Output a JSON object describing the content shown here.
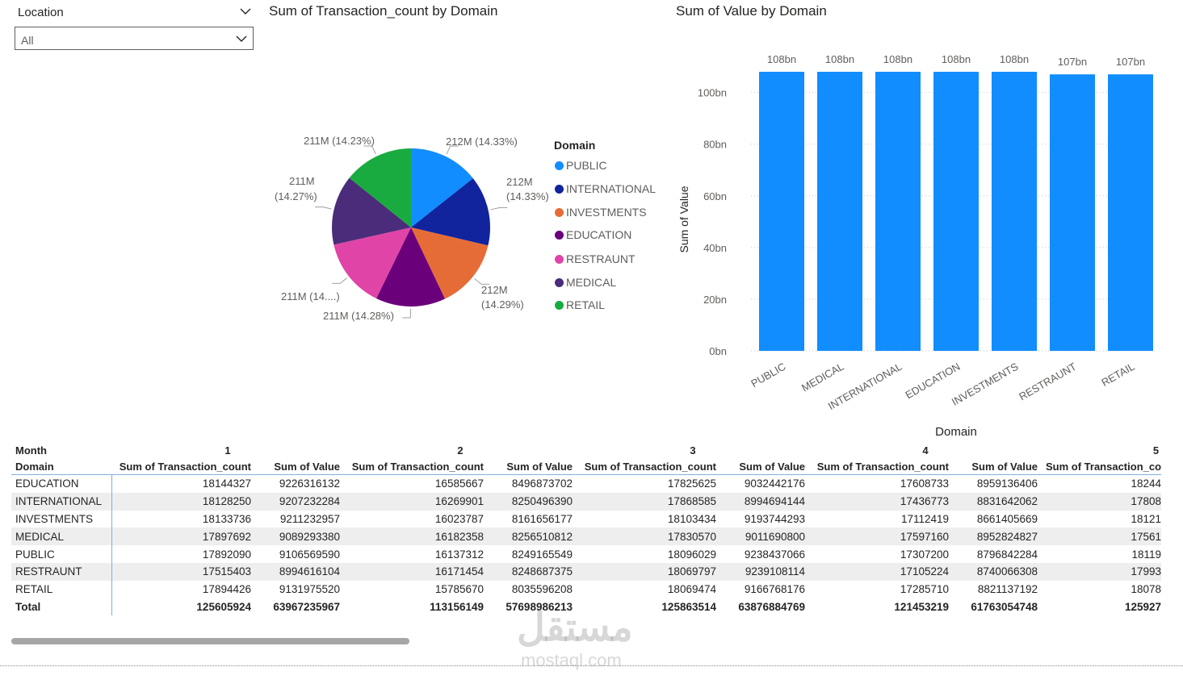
{
  "slicer": {
    "title": "Location",
    "value": "All"
  },
  "pie": {
    "title": "Sum of Transaction_count by Domain",
    "legend_title": "Domain",
    "labels": {
      "public": "212M (14.33%)",
      "international_1": "212M",
      "international_2": "(14.33%)",
      "investments_1": "212M",
      "investments_2": "(14.29%)",
      "education": "211M (14.28%)",
      "restraunt": "211M (14....)",
      "medical_1": "211M",
      "medical_2": "(14.27%)",
      "retail": "211M (14.23%)"
    },
    "legend": [
      "PUBLIC",
      "INTERNATIONAL",
      "INVESTMENTS",
      "EDUCATION",
      "RESTRAUNT",
      "MEDICAL",
      "RETAIL"
    ]
  },
  "chart_data": [
    {
      "type": "pie",
      "title": "Sum of Transaction_count by Domain",
      "legend_title": "Domain",
      "legend_position": "right",
      "categories": [
        "PUBLIC",
        "INTERNATIONAL",
        "INVESTMENTS",
        "EDUCATION",
        "RESTRAUNT",
        "MEDICAL",
        "RETAIL"
      ],
      "values": [
        212,
        212,
        212,
        211,
        211,
        211,
        211
      ],
      "percents": [
        14.33,
        14.33,
        14.29,
        14.28,
        14.27,
        14.27,
        14.23
      ],
      "unit": "M",
      "colors": [
        "#118dff",
        "#12239e",
        "#e66c37",
        "#6b007b",
        "#e044a7",
        "#4a2c7a",
        "#1aab40"
      ]
    },
    {
      "type": "bar",
      "title": "Sum of Value by Domain",
      "xlabel": "Domain",
      "ylabel": "Sum of Value",
      "categories": [
        "PUBLIC",
        "MEDICAL",
        "INTERNATIONAL",
        "EDUCATION",
        "INVESTMENTS",
        "RESTRAUNT",
        "RETAIL"
      ],
      "values": [
        108,
        108,
        108,
        108,
        108,
        107,
        107
      ],
      "data_labels": [
        "108bn",
        "108bn",
        "108bn",
        "108bn",
        "108bn",
        "107bn",
        "107bn"
      ],
      "ylim": [
        0,
        108
      ],
      "yticks": [
        0,
        20,
        40,
        60,
        80,
        100
      ],
      "ytick_labels": [
        "0bn",
        "20bn",
        "40bn",
        "60bn",
        "80bn",
        "100bn"
      ],
      "unit": "bn",
      "grid": true,
      "color": "#118dff"
    }
  ],
  "matrix": {
    "row_header_1": "Month",
    "row_header_2": "Domain",
    "months": [
      "1",
      "2",
      "3",
      "4",
      "5"
    ],
    "col_tc": "Sum of Transaction_count",
    "col_tc_cut": "Sum of Transaction_co",
    "col_val": "Sum of Value",
    "rows": [
      {
        "domain": "EDUCATION",
        "cells": [
          "18144327",
          "9226316132",
          "16585667",
          "8496873702",
          "17825625",
          "9032442176",
          "17608733",
          "8959136406",
          "18244"
        ]
      },
      {
        "domain": "INTERNATIONAL",
        "cells": [
          "18128250",
          "9207232284",
          "16269901",
          "8250496390",
          "17868585",
          "8994694144",
          "17436773",
          "8831642062",
          "17808"
        ]
      },
      {
        "domain": "INVESTMENTS",
        "cells": [
          "18133736",
          "9211232957",
          "16023787",
          "8161656177",
          "18103434",
          "9193744293",
          "17112419",
          "8661405669",
          "18121"
        ]
      },
      {
        "domain": "MEDICAL",
        "cells": [
          "17897692",
          "9089293380",
          "16182358",
          "8256510812",
          "17830570",
          "9011690800",
          "17597160",
          "8952824827",
          "17561"
        ]
      },
      {
        "domain": "PUBLIC",
        "cells": [
          "17892090",
          "9106569590",
          "16137312",
          "8249165549",
          "18096029",
          "9238437066",
          "17307200",
          "8796842284",
          "18119"
        ]
      },
      {
        "domain": "RESTRAUNT",
        "cells": [
          "17515403",
          "8994616104",
          "16171454",
          "8248687375",
          "18069797",
          "9239108114",
          "17105224",
          "8740066308",
          "17993"
        ]
      },
      {
        "domain": "RETAIL",
        "cells": [
          "17894426",
          "9131975520",
          "15785670",
          "8035596208",
          "18069474",
          "9166768176",
          "17285710",
          "8821137192",
          "18078"
        ]
      }
    ],
    "total": {
      "label": "Total",
      "cells": [
        "125605924",
        "63967235967",
        "113156149",
        "57698986213",
        "125863514",
        "63876884769",
        "121453219",
        "61763054748",
        "125927"
      ]
    }
  },
  "watermark": {
    "line1": "مستقل",
    "line2": "mostaql.com"
  }
}
